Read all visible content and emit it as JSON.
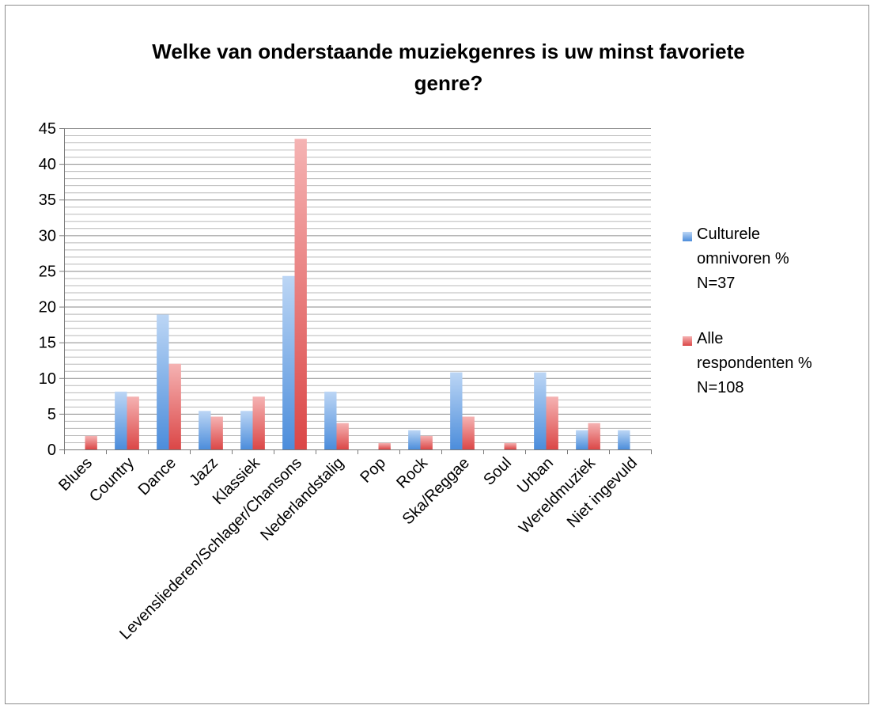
{
  "chart_data": {
    "type": "bar",
    "title_line1": "Welke van onderstaande muziekgenres is uw minst favoriete",
    "title_line2": "genre?",
    "categories": [
      "Blues",
      "Country",
      "Dance",
      "Jazz",
      "Klassiek",
      "Levensliederen/Schlager/Chansons",
      "Nederlandstalig",
      "Pop",
      "Rock",
      "Ska/Reggae",
      "Soul",
      "Urban",
      "Wereldmuziek",
      "Niet ingevuld"
    ],
    "series": [
      {
        "name_lines": [
          "Culturele",
          "omnivoren %",
          "N=37"
        ],
        "color": "#6fa3e0",
        "values": [
          0,
          8.1,
          18.9,
          5.4,
          5.4,
          24.3,
          8.1,
          0,
          2.7,
          10.8,
          0,
          10.8,
          2.7,
          2.7
        ]
      },
      {
        "name_lines": [
          "Alle",
          "respondenten %",
          "N=108"
        ],
        "color": "#e86a6a",
        "values": [
          1.9,
          7.4,
          12.0,
          4.6,
          7.4,
          43.5,
          3.7,
          0.9,
          1.9,
          4.6,
          0.9,
          7.4,
          3.7,
          0
        ]
      }
    ],
    "ylim": [
      0,
      45
    ],
    "yticks": [
      "0",
      "5",
      "10",
      "15",
      "20",
      "25",
      "30",
      "35",
      "40",
      "45"
    ],
    "minor_grid_step": 1,
    "major_grid_step": 5,
    "grid": true,
    "legend_position": "right"
  }
}
